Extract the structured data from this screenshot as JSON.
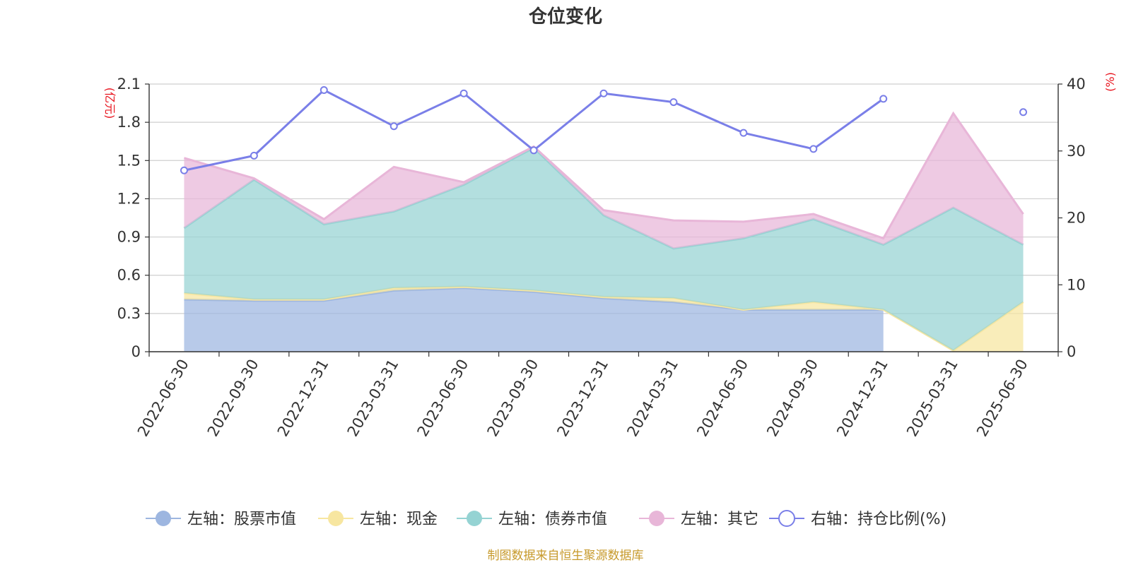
{
  "chart_data": {
    "type": "area",
    "title": "仓位变化",
    "x": [
      "2022-06-30",
      "2022-09-30",
      "2022-12-31",
      "2023-03-31",
      "2023-06-30",
      "2023-09-30",
      "2023-12-31",
      "2024-03-31",
      "2024-06-30",
      "2024-09-30",
      "2024-12-31",
      "2025-03-31",
      "2025-06-30"
    ],
    "left_axis": {
      "unit": "(亿元)",
      "ylim": [
        0,
        2.1
      ],
      "ticks": [
        "0",
        "0.3",
        "0.6",
        "0.9",
        "1.2",
        "1.5",
        "1.8",
        "2.1"
      ]
    },
    "right_axis": {
      "unit": "(%)",
      "ylim": [
        0,
        40
      ],
      "ticks": [
        "0",
        "10",
        "20",
        "30",
        "40"
      ]
    },
    "series": [
      {
        "name": "左轴：股票市值",
        "axis": "left",
        "stacked": true,
        "color": "#9db6e0",
        "values": [
          0.41,
          0.4,
          0.4,
          0.48,
          0.5,
          0.47,
          0.42,
          0.39,
          0.33,
          0.33,
          0.33,
          null,
          null
        ]
      },
      {
        "name": "左轴：现金",
        "axis": "left",
        "stacked": true,
        "color": "#f7e6a0",
        "values": [
          0.05,
          0.01,
          0.01,
          0.02,
          0.01,
          0.01,
          0.01,
          0.03,
          0.0,
          0.06,
          0.0,
          0.01,
          0.39
        ]
      },
      {
        "name": "左轴：债券市值",
        "axis": "left",
        "stacked": true,
        "color": "#95d3d3",
        "values": [
          0.51,
          0.94,
          0.59,
          0.6,
          0.8,
          1.12,
          0.64,
          0.39,
          0.56,
          0.65,
          0.51,
          1.12,
          0.45
        ]
      },
      {
        "name": "左轴：其它",
        "axis": "left",
        "stacked": true,
        "color": "#e8b6d8",
        "values": [
          0.55,
          0.01,
          0.04,
          0.35,
          0.02,
          0.01,
          0.04,
          0.22,
          0.13,
          0.04,
          0.05,
          0.74,
          0.24
        ]
      },
      {
        "name": "右轴：持仓比例(%)",
        "axis": "right",
        "stacked": false,
        "color": "#7a7fe8",
        "values": [
          27.1,
          29.3,
          39.1,
          33.7,
          38.6,
          30.1,
          38.6,
          37.3,
          32.7,
          30.3,
          37.8,
          null,
          35.8
        ]
      }
    ],
    "legend": {
      "placement": "bottom"
    },
    "grid": true,
    "source": "制图数据来自恒生聚源数据库"
  }
}
